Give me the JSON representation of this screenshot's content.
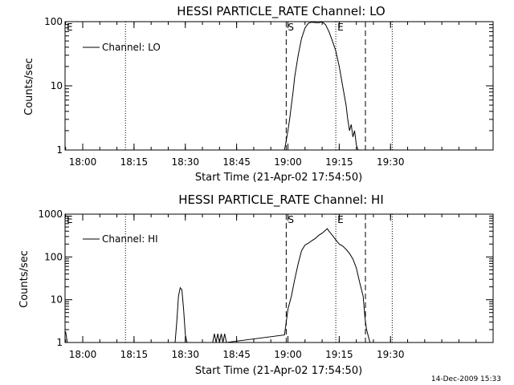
{
  "footer": {
    "timestamp": "14-Dec-2009 15:33"
  },
  "chart_data": [
    {
      "type": "line",
      "title": "HESSI PARTICLE_RATE Channel: LO",
      "xlabel": "Start Time (21-Apr-02 17:54:50)",
      "ylabel": "Counts/sec",
      "y_scale": "log",
      "ylim": [
        1,
        100
      ],
      "xlim_minutes_clock": [
        "17:54:50",
        "20:00:00"
      ],
      "x_ticks": [
        "18:00",
        "18:15",
        "18:30",
        "18:45",
        "19:00",
        "19:15",
        "19:30"
      ],
      "y_ticks": [
        "1",
        "10",
        "100"
      ],
      "legend": {
        "label": "Channel: LO",
        "placement": "top-left"
      },
      "markers": [
        {
          "label": "E",
          "time": "17:54:50",
          "style": "none"
        },
        {
          "label": "",
          "time": "18:12:30",
          "style": "dotted"
        },
        {
          "label": "S",
          "time": "18:59:30",
          "style": "dashed"
        },
        {
          "label": "E",
          "time": "19:14:00",
          "style": "dotted"
        },
        {
          "label": "",
          "time": "19:22:40",
          "style": "dashed"
        },
        {
          "label": "",
          "time": "19:30:30",
          "style": "dotted"
        }
      ],
      "series": [
        {
          "name": "Channel: LO",
          "points": [
            [
              "18:59:00",
              1
            ],
            [
              "18:59:30",
              1.4
            ],
            [
              "19:00:00",
              2
            ],
            [
              "19:00:30",
              3
            ],
            [
              "19:01:00",
              5
            ],
            [
              "19:01:30",
              8
            ],
            [
              "19:02:00",
              14
            ],
            [
              "19:03:00",
              30
            ],
            [
              "19:04:00",
              55
            ],
            [
              "19:05:00",
              80
            ],
            [
              "19:06:00",
              95
            ],
            [
              "19:07:00",
              98
            ],
            [
              "19:08:00",
              97
            ],
            [
              "19:09:00",
              96
            ],
            [
              "19:10:00",
              99
            ],
            [
              "19:11:00",
              90
            ],
            [
              "19:12:00",
              70
            ],
            [
              "19:13:00",
              50
            ],
            [
              "19:14:00",
              35
            ],
            [
              "19:15:00",
              20
            ],
            [
              "19:16:00",
              10
            ],
            [
              "19:17:00",
              5
            ],
            [
              "19:17:30",
              3
            ],
            [
              "19:18:00",
              2
            ],
            [
              "19:18:30",
              2.5
            ],
            [
              "19:19:00",
              1.6
            ],
            [
              "19:19:30",
              2
            ],
            [
              "19:20:00",
              1.2
            ],
            [
              "19:20:30",
              1
            ]
          ]
        }
      ]
    },
    {
      "type": "line",
      "title": "HESSI PARTICLE_RATE Channel: HI",
      "xlabel": "Start Time (21-Apr-02 17:54:50)",
      "ylabel": "Counts/sec",
      "y_scale": "log",
      "ylim": [
        1,
        1000
      ],
      "xlim_minutes_clock": [
        "17:54:50",
        "20:00:00"
      ],
      "x_ticks": [
        "18:00",
        "18:15",
        "18:30",
        "18:45",
        "19:00",
        "19:15",
        "19:30"
      ],
      "y_ticks": [
        "1",
        "10",
        "100",
        "1000"
      ],
      "legend": {
        "label": "Channel: HI",
        "placement": "top-left"
      },
      "markers": [
        {
          "label": "E",
          "time": "17:54:50",
          "style": "none"
        },
        {
          "label": "",
          "time": "18:12:30",
          "style": "dotted"
        },
        {
          "label": "S",
          "time": "18:59:30",
          "style": "dashed"
        },
        {
          "label": "E",
          "time": "19:14:00",
          "style": "dotted"
        },
        {
          "label": "",
          "time": "19:22:40",
          "style": "dashed"
        },
        {
          "label": "",
          "time": "19:30:30",
          "style": "dotted"
        }
      ],
      "series": [
        {
          "name": "Channel: HI",
          "points": [
            [
              "17:55:00",
              1.8
            ],
            [
              "17:55:30",
              1.0
            ],
            [
              "18:27:00",
              1.0
            ],
            [
              "18:27:30",
              3
            ],
            [
              "18:28:00",
              12
            ],
            [
              "18:28:30",
              19
            ],
            [
              "18:29:00",
              17
            ],
            [
              "18:29:30",
              6
            ],
            [
              "18:30:00",
              1.5
            ],
            [
              "18:30:30",
              1.0
            ],
            [
              "18:38:00",
              1.0
            ],
            [
              "18:38:30",
              1.6
            ],
            [
              "18:39:00",
              1.0
            ],
            [
              "18:39:30",
              1.6
            ],
            [
              "18:40:00",
              1.0
            ],
            [
              "18:40:30",
              1.6
            ],
            [
              "18:41:00",
              1.0
            ],
            [
              "18:41:30",
              1.6
            ],
            [
              "18:42:00",
              1.0
            ],
            [
              "18:59:00",
              1.5
            ],
            [
              "18:59:30",
              3
            ],
            [
              "19:00:00",
              6
            ],
            [
              "19:01:00",
              12
            ],
            [
              "19:02:00",
              30
            ],
            [
              "19:03:00",
              70
            ],
            [
              "19:04:00",
              140
            ],
            [
              "19:05:00",
              190
            ],
            [
              "19:06:00",
              210
            ],
            [
              "19:07:00",
              240
            ],
            [
              "19:08:00",
              270
            ],
            [
              "19:09:00",
              320
            ],
            [
              "19:10:00",
              360
            ],
            [
              "19:11:00",
              420
            ],
            [
              "19:11:30",
              460
            ],
            [
              "19:12:00",
              400
            ],
            [
              "19:13:00",
              320
            ],
            [
              "19:14:00",
              250
            ],
            [
              "19:15:00",
              200
            ],
            [
              "19:16:00",
              180
            ],
            [
              "19:17:00",
              150
            ],
            [
              "19:18:00",
              120
            ],
            [
              "19:19:00",
              90
            ],
            [
              "19:20:00",
              55
            ],
            [
              "19:21:00",
              25
            ],
            [
              "19:22:00",
              12
            ],
            [
              "19:22:30",
              4
            ],
            [
              "19:23:00",
              2
            ],
            [
              "19:23:30",
              1.4
            ],
            [
              "19:24:00",
              1
            ]
          ]
        }
      ]
    }
  ]
}
